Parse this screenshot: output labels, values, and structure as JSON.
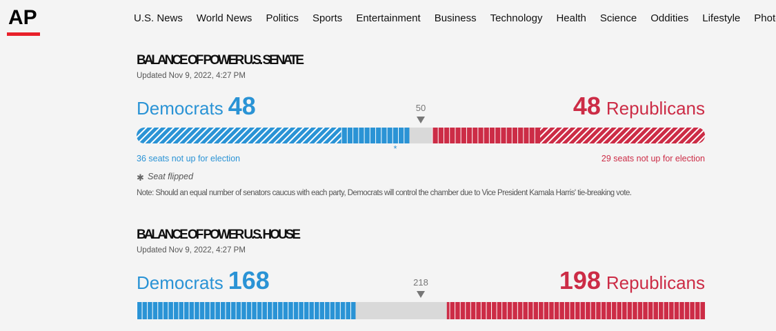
{
  "nav": {
    "logo": "AP",
    "items": [
      "U.S. News",
      "World News",
      "Politics",
      "Sports",
      "Entertainment",
      "Business",
      "Technology",
      "Health",
      "Science",
      "Oddities",
      "Lifestyle",
      "Photography"
    ]
  },
  "sections": [
    {
      "title": "BALANCE OF POWER U.S. SENATE",
      "updated": "Updated Nov 9, 2022, 4:27 PM",
      "dem": {
        "label": "Democrats",
        "seats": 48,
        "not_up": {
          "value": 36,
          "label": "36 seats not up for election"
        }
      },
      "rep": {
        "label": "Republicans",
        "seats": 48,
        "not_up": {
          "value": 29,
          "label": "29 seats not up for election"
        }
      },
      "majority": 50,
      "flipped_legend": "Seat flipped",
      "note": "Note: Should an equal number of senators caucus with each party, Democrats will control the chamber due to Vice President Kamala Harris' tie-breaking vote."
    },
    {
      "title": "BALANCE OF POWER U.S. HOUSE",
      "updated": "Updated Nov 9, 2022, 4:27 PM",
      "dem": {
        "label": "Democrats",
        "seats": 168
      },
      "rep": {
        "label": "Republicans",
        "seats": 198
      },
      "majority": 218
    }
  ]
}
